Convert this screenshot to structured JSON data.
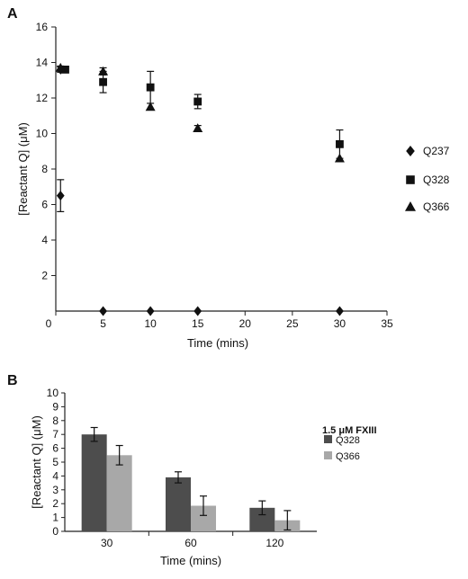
{
  "panel_labels": {
    "a": "A",
    "b": "B"
  },
  "chart_data": [
    {
      "type": "scatter",
      "panel": "A",
      "xlabel": "Time (mins)",
      "ylabel": "[Reactant Q] (μM)",
      "xlim": [
        0,
        35
      ],
      "ylim": [
        0,
        16
      ],
      "xticks": [
        0,
        5,
        10,
        15,
        20,
        25,
        30,
        35
      ],
      "yticks": [
        2,
        4,
        6,
        8,
        10,
        12,
        14,
        16
      ],
      "legend_position": "right",
      "series": [
        {
          "name": "Q237",
          "marker": "diamond",
          "x": [
            0.5,
            0.5,
            5,
            10,
            15,
            30
          ],
          "y": [
            13.6,
            6.5,
            0,
            0,
            0,
            0
          ],
          "err": [
            0.15,
            0.9,
            0,
            0,
            0,
            0
          ]
        },
        {
          "name": "Q328",
          "marker": "square",
          "x": [
            1,
            5,
            10,
            15,
            30
          ],
          "y": [
            13.6,
            12.9,
            12.6,
            11.8,
            9.4
          ],
          "err": [
            0.1,
            0.6,
            0.9,
            0.4,
            0.8
          ]
        },
        {
          "name": "Q366",
          "marker": "triangle",
          "x": [
            0.5,
            5,
            10,
            15,
            30
          ],
          "y": [
            13.7,
            13.5,
            11.5,
            10.3,
            8.6
          ],
          "err": [
            0.1,
            0.2,
            0,
            0.15,
            0
          ]
        }
      ]
    },
    {
      "type": "bar",
      "panel": "B",
      "xlabel": "Time (mins)",
      "ylabel": "[Reactant Q] (μM)",
      "ylim": [
        0,
        10
      ],
      "yticks": [
        0,
        1,
        2,
        3,
        4,
        5,
        6,
        7,
        8,
        9,
        10
      ],
      "categories": [
        "30",
        "60",
        "120"
      ],
      "legend_title": "1.5 μM FXIII",
      "legend_position": "right",
      "series": [
        {
          "name": "Q328",
          "color": "#4d4d4d",
          "values": [
            7.0,
            3.9,
            1.7
          ],
          "err": [
            0.5,
            0.4,
            0.5
          ]
        },
        {
          "name": "Q366",
          "color": "#a8a8a8",
          "values": [
            5.5,
            1.85,
            0.8
          ],
          "err": [
            0.7,
            0.7,
            0.7
          ]
        }
      ]
    }
  ]
}
